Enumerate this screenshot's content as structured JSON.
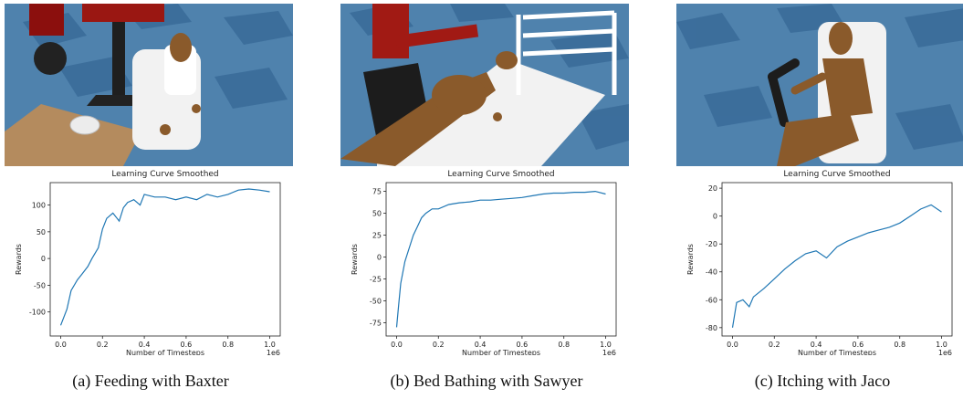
{
  "panels": [
    {
      "caption": "(a) Feeding with Baxter"
    },
    {
      "caption": "(b) Bed Bathing with Sawyer"
    },
    {
      "caption": "(c) Itching with Jaco"
    }
  ],
  "colors": {
    "line": "#1f77b4",
    "floor_dark": "#3a6c9a",
    "floor_light": "#4f82ad",
    "skin": "#8a5a2b",
    "robot_red": "#a11a14"
  },
  "chart_data": [
    {
      "type": "line",
      "title": "Learning Curve Smoothed",
      "xlabel": "Number of Timesteps",
      "ylabel": "Rewards",
      "x_scale_label": "1e6",
      "xlim": [
        -0.05,
        1.05
      ],
      "ylim": [
        -145,
        142
      ],
      "xticks": [
        0.0,
        0.2,
        0.4,
        0.6,
        0.8,
        1.0
      ],
      "xtick_labels": [
        "0.0",
        "0.2",
        "0.4",
        "0.6",
        "0.8",
        "1.0"
      ],
      "yticks": [
        -100,
        -50,
        0,
        50,
        100
      ],
      "ytick_labels": [
        "-100",
        "-50",
        "0",
        "50",
        "100"
      ],
      "series": [
        {
          "x": [
            0.0,
            0.03,
            0.05,
            0.08,
            0.1,
            0.13,
            0.15,
            0.18,
            0.2,
            0.22,
            0.25,
            0.28,
            0.3,
            0.32,
            0.35,
            0.38,
            0.4,
            0.45,
            0.5,
            0.55,
            0.6,
            0.65,
            0.7,
            0.75,
            0.8,
            0.85,
            0.9,
            0.95,
            1.0
          ],
          "y": [
            -125,
            -95,
            -60,
            -40,
            -30,
            -15,
            0,
            20,
            55,
            75,
            85,
            70,
            95,
            105,
            110,
            100,
            120,
            115,
            115,
            110,
            115,
            110,
            120,
            115,
            120,
            128,
            130,
            128,
            125
          ]
        }
      ]
    },
    {
      "type": "line",
      "title": "Learning Curve Smoothed",
      "xlabel": "Number of Timesteps",
      "ylabel": "Rewards",
      "x_scale_label": "1e6",
      "xlim": [
        -0.05,
        1.05
      ],
      "ylim": [
        -90,
        85
      ],
      "xticks": [
        0.0,
        0.2,
        0.4,
        0.6,
        0.8,
        1.0
      ],
      "xtick_labels": [
        "0.0",
        "0.2",
        "0.4",
        "0.6",
        "0.8",
        "1.0"
      ],
      "yticks": [
        -75,
        -50,
        -25,
        0,
        25,
        50,
        75
      ],
      "ytick_labels": [
        "-75",
        "-50",
        "-25",
        "0",
        "25",
        "50",
        "75"
      ],
      "series": [
        {
          "x": [
            0.0,
            0.01,
            0.02,
            0.04,
            0.06,
            0.08,
            0.1,
            0.12,
            0.14,
            0.17,
            0.2,
            0.25,
            0.3,
            0.35,
            0.4,
            0.45,
            0.5,
            0.55,
            0.6,
            0.65,
            0.7,
            0.75,
            0.8,
            0.85,
            0.9,
            0.95,
            1.0
          ],
          "y": [
            -80,
            -55,
            -30,
            -5,
            10,
            25,
            35,
            45,
            50,
            55,
            55,
            60,
            62,
            63,
            65,
            65,
            66,
            67,
            68,
            70,
            72,
            73,
            73,
            74,
            74,
            75,
            72
          ]
        }
      ]
    },
    {
      "type": "line",
      "title": "Learning Curve Smoothed",
      "xlabel": "Number of Timesteps",
      "ylabel": "Rewards",
      "x_scale_label": "1e6",
      "xlim": [
        -0.05,
        1.05
      ],
      "ylim": [
        -86,
        24
      ],
      "xticks": [
        0.0,
        0.2,
        0.4,
        0.6,
        0.8,
        1.0
      ],
      "xtick_labels": [
        "0.0",
        "0.2",
        "0.4",
        "0.6",
        "0.8",
        "1.0"
      ],
      "yticks": [
        -80,
        -60,
        -40,
        -20,
        0,
        20
      ],
      "ytick_labels": [
        "-80",
        "-60",
        "-40",
        "-20",
        "0",
        "20"
      ],
      "series": [
        {
          "x": [
            0.0,
            0.02,
            0.05,
            0.08,
            0.1,
            0.15,
            0.2,
            0.25,
            0.3,
            0.35,
            0.4,
            0.45,
            0.5,
            0.55,
            0.6,
            0.65,
            0.7,
            0.75,
            0.8,
            0.85,
            0.9,
            0.95,
            1.0
          ],
          "y": [
            -80,
            -62,
            -60,
            -65,
            -58,
            -52,
            -45,
            -38,
            -32,
            -27,
            -25,
            -30,
            -22,
            -18,
            -15,
            -12,
            -10,
            -8,
            -5,
            0,
            5,
            8,
            3
          ]
        }
      ]
    }
  ]
}
